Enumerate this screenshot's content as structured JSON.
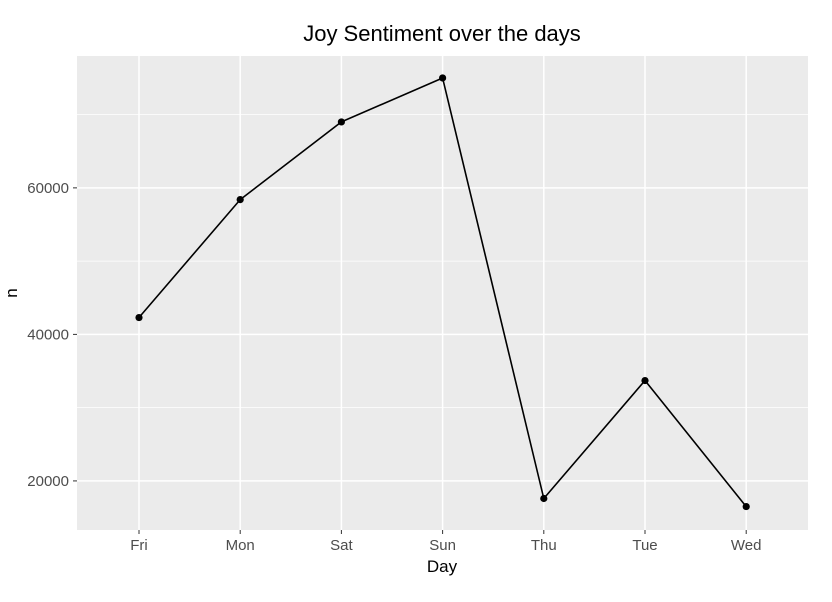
{
  "chart_data": {
    "type": "line",
    "title": "Joy Sentiment over the days",
    "xlabel": "Day",
    "ylabel": "n",
    "categories": [
      "Fri",
      "Mon",
      "Sat",
      "Sun",
      "Thu",
      "Tue",
      "Wed"
    ],
    "series": [
      {
        "values": [
          42300,
          58400,
          69000,
          75000,
          17600,
          33700,
          16500
        ]
      }
    ],
    "y_ticks": [
      20000,
      40000,
      60000
    ],
    "y_tick_labels": [
      "20000",
      "40000",
      "60000"
    ],
    "ylim": [
      13300,
      78000
    ],
    "grid": true,
    "legend": "none",
    "colors": {
      "panel": "#ebebeb",
      "grid": "#ffffff",
      "line": "#000000",
      "point": "#000000"
    }
  }
}
